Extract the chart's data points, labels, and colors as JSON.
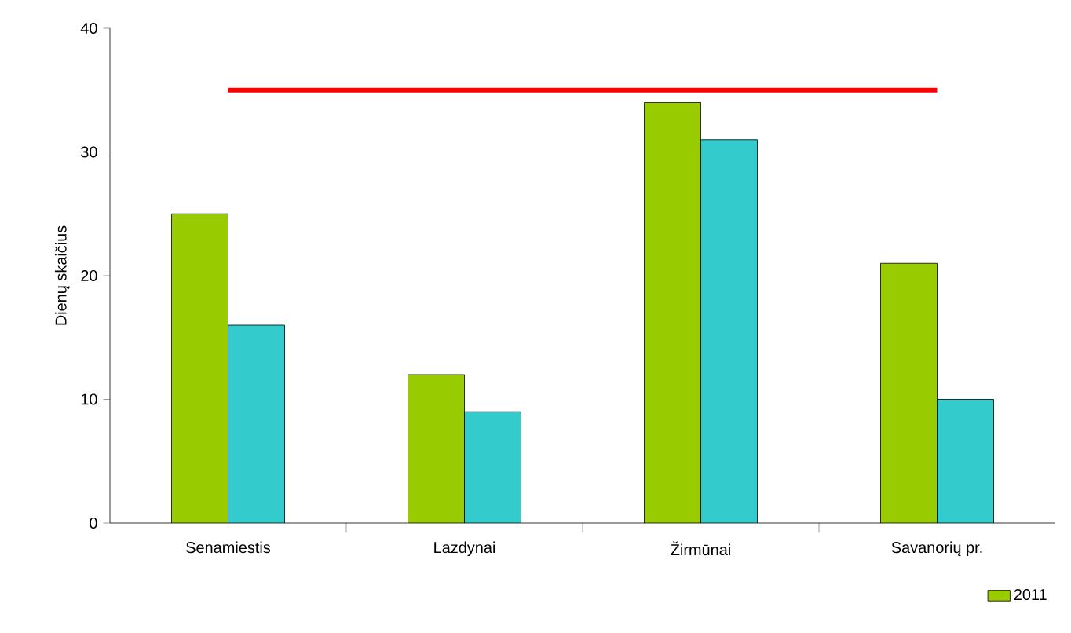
{
  "chart_data": {
    "type": "bar",
    "ylabel": "Dienų skaičius",
    "categories": [
      "Senamiestis",
      "Lazdynai",
      "Žirmūnai",
      "Savanorių pr."
    ],
    "series": [
      {
        "name": "2011",
        "color": "#99cc00",
        "values": [
          25,
          12,
          34,
          21
        ]
      },
      {
        "color": "#33cccc",
        "values": [
          16,
          9,
          31,
          10
        ]
      },
      {
        "type": "line",
        "color": "#ff0000",
        "values": [
          35,
          35,
          35,
          35
        ]
      }
    ],
    "ylim": [
      0,
      40
    ],
    "yticks": [
      0,
      10,
      20,
      30,
      40
    ],
    "legend": "bottom right",
    "grid": false,
    "marker": "none"
  }
}
